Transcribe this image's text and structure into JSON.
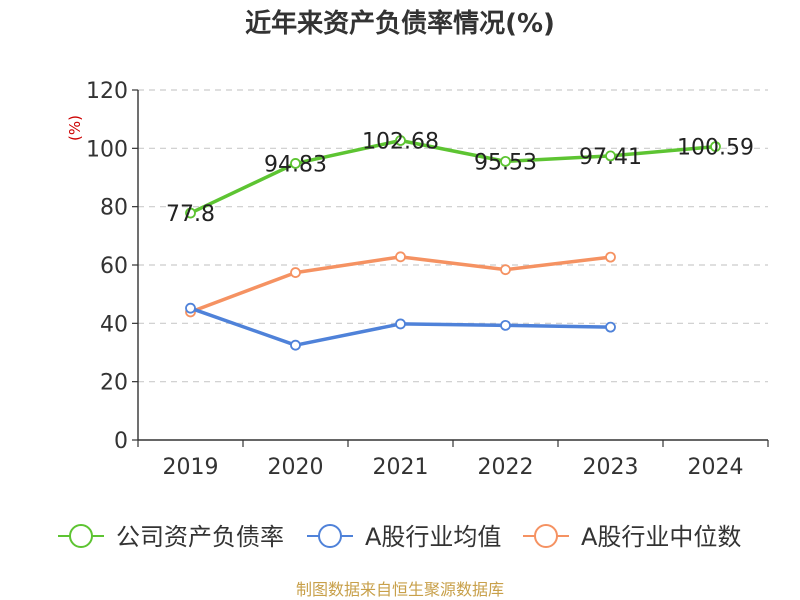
{
  "chart_data": {
    "type": "line",
    "title": "近年来资产负债率情况(%)",
    "xlabel": "",
    "ylabel": "(%)",
    "categories": [
      "2019",
      "2020",
      "2021",
      "2022",
      "2023",
      "2024"
    ],
    "ylim": [
      0,
      120
    ],
    "yticks": [
      0,
      20,
      40,
      60,
      80,
      100,
      120
    ],
    "grid": true,
    "legend_position": "bottom",
    "series": [
      {
        "name": "公司资产负债率",
        "color": "#5dc432",
        "values": [
          77.8,
          94.83,
          102.68,
          95.53,
          97.41,
          100.59
        ],
        "labels": [
          "77.8",
          "94.83",
          "102.68",
          "95.53",
          "97.41",
          "100.59"
        ]
      },
      {
        "name": "A股行业均值",
        "color": "#4f82d9",
        "values": [
          45.2,
          32.5,
          39.8,
          39.3,
          38.7,
          null
        ]
      },
      {
        "name": "A股行业中位数",
        "color": "#f59262",
        "values": [
          43.9,
          57.4,
          62.8,
          58.4,
          62.7,
          null
        ]
      }
    ]
  },
  "source": "制图数据来自恒生聚源数据库"
}
